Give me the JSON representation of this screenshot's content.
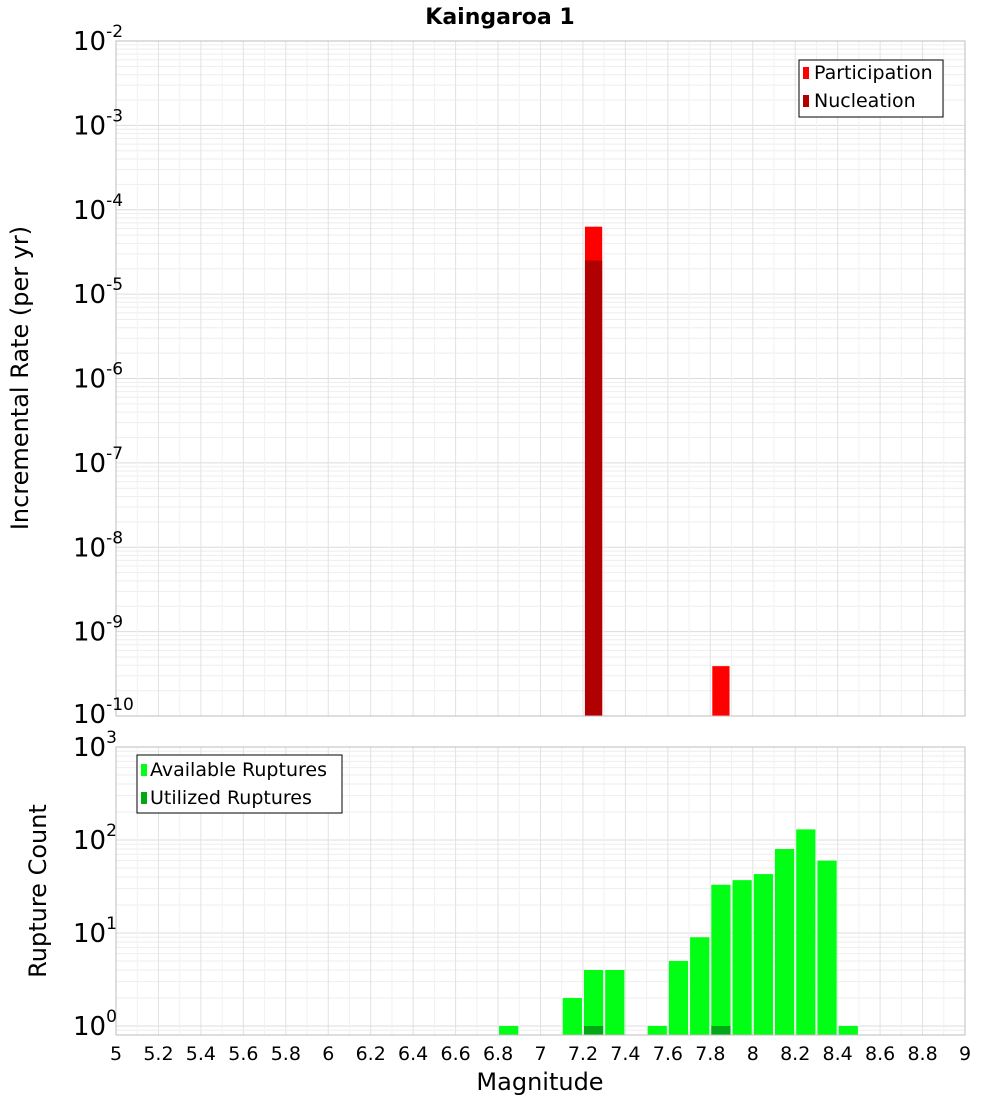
{
  "chart_data": [
    {
      "type": "bar",
      "title": "Kaingaroa 1",
      "xlabel": "",
      "ylabel": "Incremental Rate (per yr)",
      "yscale": "log",
      "ylim": [
        1e-10,
        0.01
      ],
      "xlim": [
        5,
        9
      ],
      "grid": true,
      "legend_position": "top-right",
      "bar_width": 0.1,
      "y_ticks": [
        {
          "exp": "-10",
          "value": 1e-10
        },
        {
          "exp": "-9",
          "value": 1e-09
        },
        {
          "exp": "-8",
          "value": 1e-08
        },
        {
          "exp": "-7",
          "value": 1e-07
        },
        {
          "exp": "-6",
          "value": 1e-06
        },
        {
          "exp": "-5",
          "value": 1e-05
        },
        {
          "exp": "-4",
          "value": 0.0001
        },
        {
          "exp": "-3",
          "value": 0.001
        },
        {
          "exp": "-2",
          "value": 0.01
        }
      ],
      "series": [
        {
          "name": "Participation",
          "color": "#ff0000",
          "points": [
            {
              "x": 7.25,
              "y": 6.3e-05
            },
            {
              "x": 7.85,
              "y": 3.9e-10
            }
          ]
        },
        {
          "name": "Nucleation",
          "color": "#b00000",
          "points": [
            {
              "x": 7.25,
              "y": 2.5e-05
            }
          ]
        }
      ]
    },
    {
      "type": "bar",
      "title": "",
      "xlabel": "Magnitude",
      "ylabel": "Rupture Count",
      "yscale": "log",
      "ylim": [
        0.8,
        1000
      ],
      "xlim": [
        5,
        9
      ],
      "grid": true,
      "legend_position": "top-left",
      "bar_width": 0.1,
      "x_ticks": [
        "5",
        "5.2",
        "5.4",
        "5.6",
        "5.8",
        "6",
        "6.2",
        "6.4",
        "6.6",
        "6.8",
        "7",
        "7.2",
        "7.4",
        "7.6",
        "7.8",
        "8",
        "8.2",
        "8.4",
        "8.6",
        "8.8",
        "9"
      ],
      "y_ticks": [
        {
          "exp": "0",
          "value": 1
        },
        {
          "exp": "1",
          "value": 10
        },
        {
          "exp": "2",
          "value": 100
        },
        {
          "exp": "3",
          "value": 1000
        }
      ],
      "series": [
        {
          "name": "Available Ruptures",
          "color": "#00ff14",
          "points": [
            {
              "x": 6.85,
              "y": 1
            },
            {
              "x": 7.15,
              "y": 2
            },
            {
              "x": 7.25,
              "y": 4
            },
            {
              "x": 7.35,
              "y": 4
            },
            {
              "x": 7.55,
              "y": 1
            },
            {
              "x": 7.65,
              "y": 5
            },
            {
              "x": 7.75,
              "y": 9
            },
            {
              "x": 7.85,
              "y": 33
            },
            {
              "x": 7.95,
              "y": 37
            },
            {
              "x": 8.05,
              "y": 43
            },
            {
              "x": 8.15,
              "y": 80
            },
            {
              "x": 8.25,
              "y": 130
            },
            {
              "x": 8.35,
              "y": 60
            },
            {
              "x": 8.45,
              "y": 1
            }
          ]
        },
        {
          "name": "Utilized Ruptures",
          "color": "#00a814",
          "points": [
            {
              "x": 7.25,
              "y": 1
            },
            {
              "x": 7.85,
              "y": 1
            }
          ]
        }
      ]
    }
  ]
}
